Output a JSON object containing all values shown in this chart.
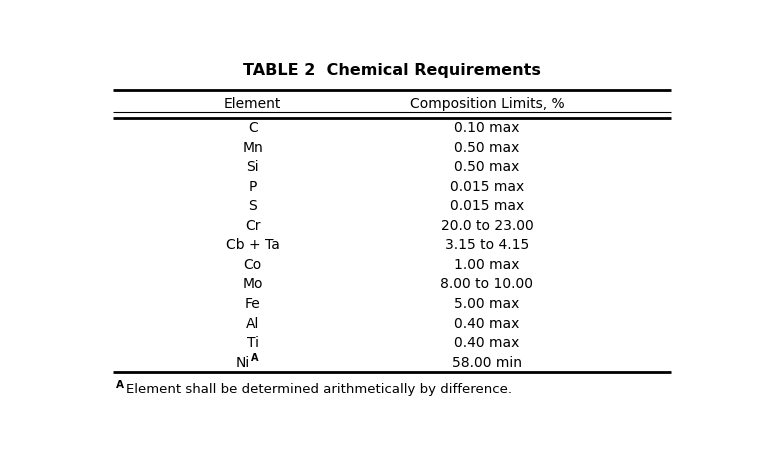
{
  "title": "TABLE 2  Chemical Requirements",
  "col1_header": "Element",
  "col2_header": "Composition Limits, %",
  "rows": [
    [
      "C",
      "0.10 max"
    ],
    [
      "Mn",
      "0.50 max"
    ],
    [
      "Si",
      "0.50 max"
    ],
    [
      "P",
      "0.015 max"
    ],
    [
      "S",
      "0.015 max"
    ],
    [
      "Cr",
      "20.0 to 23.00"
    ],
    [
      "Cb + Ta",
      "3.15 to 4.15"
    ],
    [
      "Co",
      "1.00 max"
    ],
    [
      "Mo",
      "8.00 to 10.00"
    ],
    [
      "Fe",
      "5.00 max"
    ],
    [
      "Al",
      "0.40 max"
    ],
    [
      "Ti",
      "0.40 max"
    ],
    [
      "NiA",
      "58.00 min"
    ]
  ],
  "bg_color": "#ffffff",
  "text_color": "#000000",
  "title_fontsize": 11.5,
  "header_fontsize": 10,
  "row_fontsize": 10,
  "footnote_fontsize": 9.5,
  "fig_width": 7.65,
  "fig_height": 4.58
}
